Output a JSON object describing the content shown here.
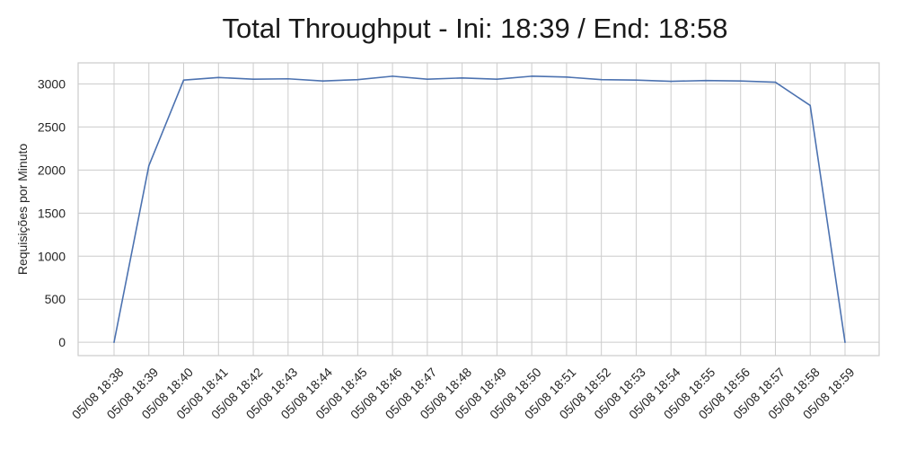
{
  "chart_data": {
    "type": "line",
    "title": "Total Throughput - Ini: 18:39 / End: 18:58",
    "xlabel": "",
    "ylabel": "Requisições por Minuto",
    "categories": [
      "05/08 18:38",
      "05/08 18:39",
      "05/08 18:40",
      "05/08 18:41",
      "05/08 18:42",
      "05/08 18:43",
      "05/08 18:44",
      "05/08 18:45",
      "05/08 18:46",
      "05/08 18:47",
      "05/08 18:48",
      "05/08 18:49",
      "05/08 18:50",
      "05/08 18:51",
      "05/08 18:52",
      "05/08 18:53",
      "05/08 18:54",
      "05/08 18:55",
      "05/08 18:56",
      "05/08 18:57",
      "05/08 18:58",
      "05/08 18:59"
    ],
    "series": [
      {
        "values": [
          0,
          2050,
          3045,
          3075,
          3055,
          3060,
          3035,
          3050,
          3090,
          3055,
          3070,
          3055,
          3090,
          3080,
          3050,
          3045,
          3030,
          3040,
          3035,
          3020,
          2750,
          0
        ]
      }
    ],
    "yticks": [
      0,
      500,
      1000,
      1500,
      2000,
      2500,
      3000
    ],
    "ylim": [
      -155,
      3245
    ],
    "grid": true,
    "colors": {
      "line": "#4c72b0",
      "grid": "#cccccc",
      "frame": "#cccccc",
      "background": "#ffffff"
    }
  }
}
